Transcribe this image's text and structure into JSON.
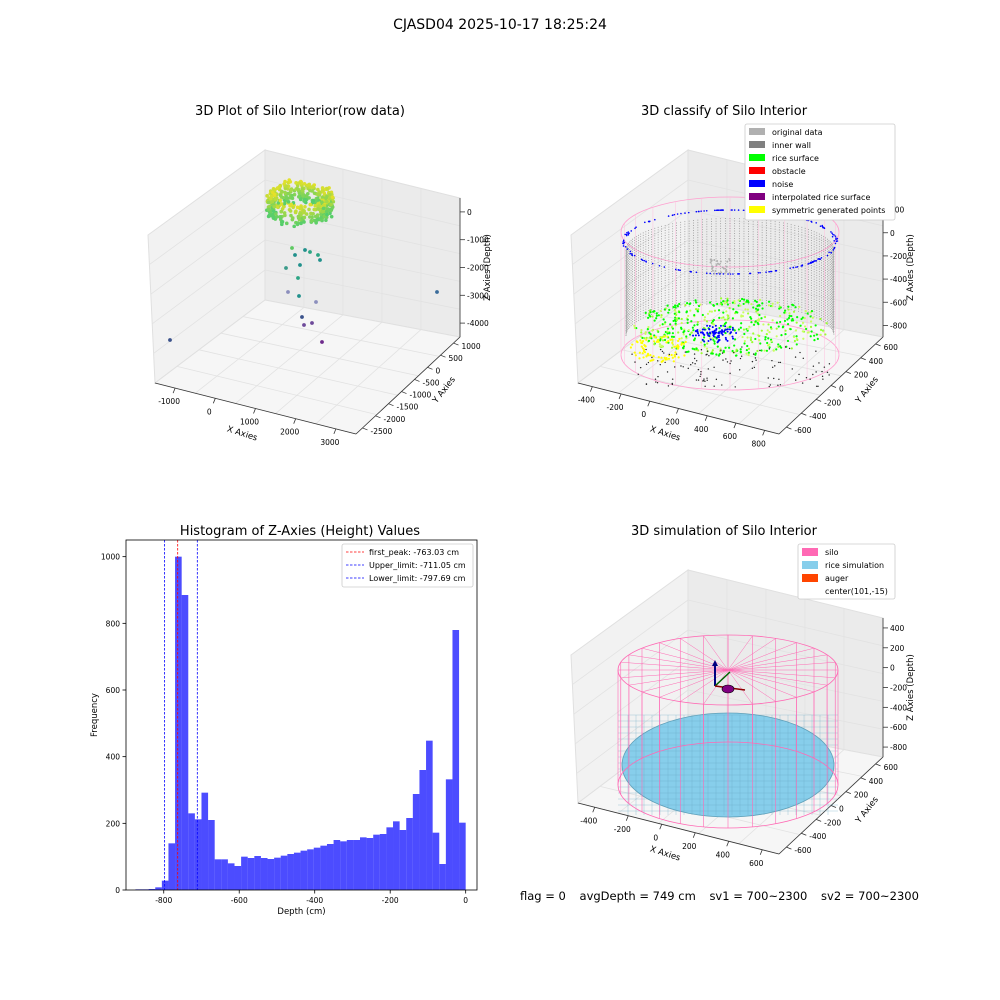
{
  "suptitle": "CJASD04 2025-10-17 18:25:24",
  "footer": {
    "flag": "flag = 0",
    "avg": "avgDepth = 749 cm",
    "sv1": "sv1 = 700~2300",
    "sv2": "sv2 = 700~2300"
  },
  "colors": {
    "original": "#b0b0b0",
    "inner_wall": "#808080",
    "rice": "#00ff00",
    "obstacle": "#ff0000",
    "noise": "#0000ff",
    "interp": "#800080",
    "symmetric": "#ffff00",
    "silo": "#ff69b4",
    "rice_sim": "#87ceeb",
    "auger": "#ff4500",
    "hist": "#0000ff"
  },
  "chart_data": [
    {
      "type": "scatter",
      "title": "3D Plot of Silo Interior(row data)",
      "xlabel": "X Axies",
      "ylabel": "Y Axies",
      "zlabel": "Z Axies (Depth)",
      "xticks": [
        "-1000",
        "0",
        "1000",
        "2000",
        "3000"
      ],
      "yticks": [
        "1000",
        "500",
        "0",
        "-500",
        "-1000",
        "-1500",
        "-2000",
        "-2500"
      ],
      "zticks": [
        "0",
        "-1000",
        "-2000",
        "-3000",
        "-4000"
      ]
    },
    {
      "type": "scatter",
      "title": "3D classify of Silo Interior",
      "xlabel": "X Axies",
      "ylabel": "Y Axies",
      "zlabel": "Z Axies (Depth)",
      "xticks": [
        "-400",
        "-200",
        "0",
        "200",
        "400",
        "600",
        "800"
      ],
      "yticks": [
        "600",
        "400",
        "200",
        "0",
        "-200",
        "-400",
        "-600"
      ],
      "zticks": [
        "200",
        "0",
        "-200",
        "-400",
        "-600",
        "-800"
      ],
      "legend": [
        "original data",
        "inner wall",
        "rice surface",
        "obstacle",
        "noise",
        "interpolated rice surface",
        "symmetric generated points"
      ]
    },
    {
      "type": "bar",
      "title": "Histogram of Z-Axies (Height) Values",
      "xlabel": "Depth (cm)",
      "ylabel": "Frequency",
      "xlim": [
        -900,
        30
      ],
      "ylim": [
        0,
        1050
      ],
      "xticks": [
        "-800",
        "-600",
        "-400",
        "-200",
        "0"
      ],
      "yticks": [
        "0",
        "200",
        "400",
        "600",
        "800",
        "1000"
      ],
      "bin_width": 17.5,
      "bins_start": [
        -875,
        -857.5,
        -840,
        -822.5,
        -805,
        -787.5,
        -770,
        -752.5,
        -735,
        -717.5,
        -700,
        -682.5,
        -665,
        -647.5,
        -630,
        -612.5,
        -595,
        -577.5,
        -560,
        -542.5,
        -525,
        -507.5,
        -490,
        -472.5,
        -455,
        -437.5,
        -420,
        -402.5,
        -385,
        -367.5,
        -350,
        -332.5,
        -315,
        -297.5,
        -280,
        -262.5,
        -245,
        -227.5,
        -210,
        -192.5,
        -175,
        -157.5,
        -140,
        -122.5,
        -105,
        -87.5,
        -70,
        -52.5,
        -35,
        -17.5
      ],
      "values": [
        2,
        2,
        3,
        8,
        28,
        140,
        1000,
        885,
        230,
        212,
        292,
        210,
        92,
        92,
        80,
        72,
        100,
        96,
        102,
        96,
        93,
        97,
        103,
        108,
        112,
        118,
        122,
        127,
        133,
        138,
        150,
        146,
        150,
        150,
        158,
        156,
        166,
        168,
        188,
        206,
        180,
        216,
        288,
        360,
        448,
        172,
        78,
        332,
        780,
        202
      ],
      "vlines": [
        {
          "label": "first_peak: -763.03 cm",
          "x": -763.03,
          "color": "#ff0000"
        },
        {
          "label": "Upper_limit: -711.05 cm",
          "x": -711.05,
          "color": "#0000ff"
        },
        {
          "label": "Lower_limit: -797.69 cm",
          "x": -797.69,
          "color": "#0000ff"
        }
      ]
    },
    {
      "type": "scatter",
      "title": "3D simulation of Silo Interior",
      "xlabel": "X Axies",
      "ylabel": "Y Axies",
      "zlabel": "Z Axies (Depth)",
      "xticks": [
        "-400",
        "-200",
        "0",
        "200",
        "400",
        "600"
      ],
      "yticks": [
        "600",
        "400",
        "200",
        "0",
        "-200",
        "-400",
        "-600"
      ],
      "zticks": [
        "400",
        "200",
        "0",
        "-200",
        "-400",
        "-600",
        "-800"
      ],
      "legend": [
        "silo",
        "rice simulation",
        "auger",
        "center(101,-15)"
      ]
    }
  ]
}
